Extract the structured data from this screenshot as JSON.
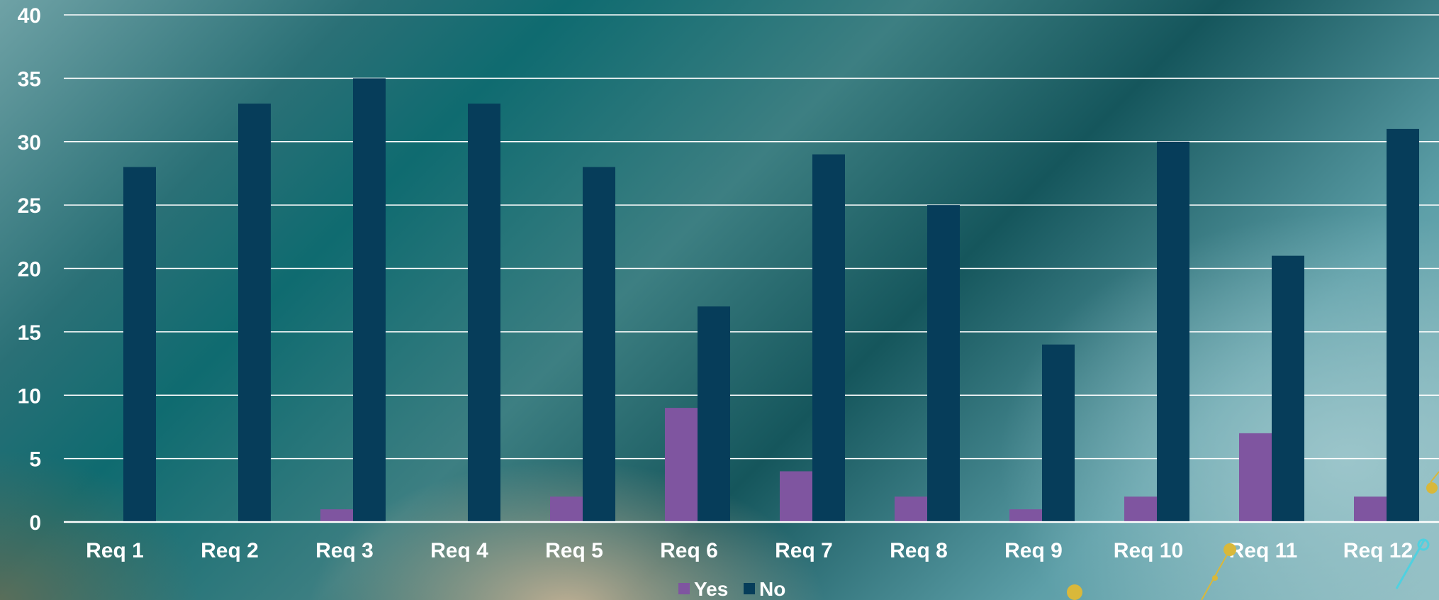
{
  "chart_data": {
    "type": "bar",
    "categories": [
      "Req 1",
      "Req 2",
      "Req 3",
      "Req 4",
      "Req 5",
      "Req 6",
      "Req 7",
      "Req 8",
      "Req 9",
      "Req 10",
      "Req 11",
      "Req 12"
    ],
    "series": [
      {
        "name": "Yes",
        "values": [
          0,
          0,
          1,
          0,
          2,
          9,
          4,
          2,
          1,
          2,
          7,
          2
        ],
        "color": "#7f55a0"
      },
      {
        "name": "No",
        "values": [
          28,
          33,
          35,
          33,
          28,
          17,
          29,
          25,
          14,
          30,
          21,
          31
        ],
        "color": "#063d5a"
      }
    ],
    "ylim": [
      0,
      40
    ],
    "yticks": [
      "0",
      "5",
      "10",
      "15",
      "20",
      "25",
      "30",
      "35",
      "40"
    ],
    "grid": true,
    "legend_position": "bottom"
  }
}
